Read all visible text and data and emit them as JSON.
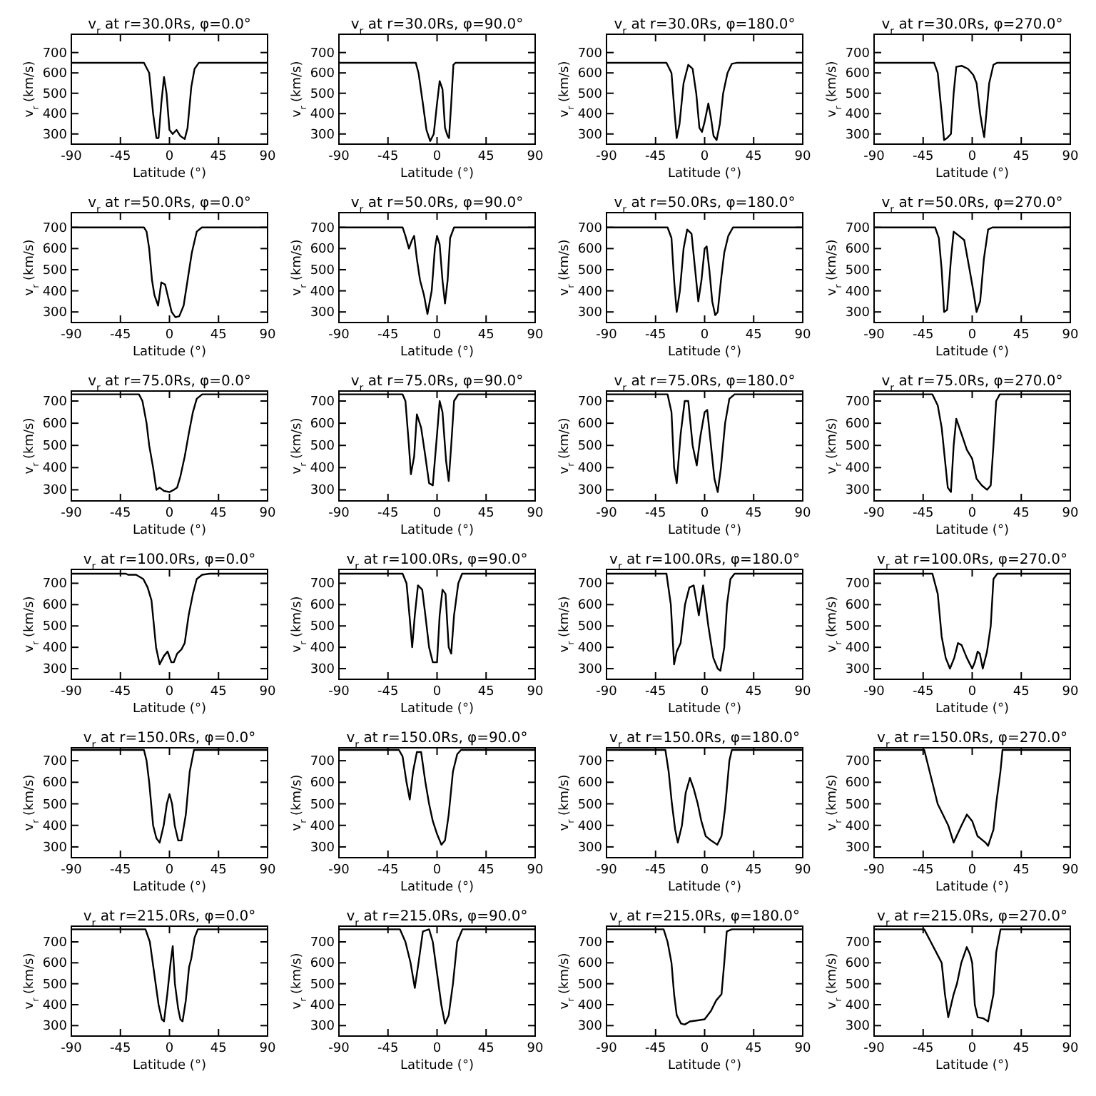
{
  "chart_data": [
    {
      "type": "line",
      "title": "v$_{r}$ at r=30.0Rs, φ=0.0°",
      "xlabel": "Latitude (°)",
      "ylabel": "v$_{r}$ (km/s)",
      "xlim": [
        -90,
        90
      ],
      "xticks": [
        -90,
        -45,
        0,
        45,
        90
      ],
      "ylim": [
        250,
        790
      ],
      "yticks": [
        300,
        400,
        500,
        600,
        700
      ],
      "series": [
        {
          "color": "#000000",
          "x": [
            -90,
            -23.4,
            -18.6,
            -15,
            -12,
            -10,
            -7.5,
            -5,
            -2.7,
            0,
            3,
            6.5,
            10,
            14,
            16.6,
            20,
            23,
            27,
            90
          ],
          "values": [
            650,
            650,
            600,
            400,
            280,
            280,
            450,
            580,
            500,
            320,
            300,
            320,
            290,
            275,
            330,
            530,
            620,
            650,
            650
          ]
        }
      ]
    },
    {
      "type": "line",
      "title": "v$_{r}$ at r=30.0Rs, φ=90.0°",
      "xlabel": "Latitude (°)",
      "ylabel": "v$_{r}$ (km/s)",
      "xlim": [
        -90,
        90
      ],
      "xticks": [
        -90,
        -45,
        0,
        45,
        90
      ],
      "ylim": [
        250,
        790
      ],
      "yticks": [
        300,
        400,
        500,
        600,
        700
      ],
      "series": [
        {
          "color": "#000000",
          "x": [
            -90,
            -19.5,
            -17,
            -13,
            -9.7,
            -6.3,
            -3,
            0,
            2.4,
            5,
            7.3,
            9.7,
            11,
            13,
            15,
            17,
            90
          ],
          "values": [
            650,
            650,
            600,
            450,
            320,
            265,
            300,
            450,
            560,
            520,
            330,
            290,
            280,
            450,
            640,
            650,
            650
          ]
        }
      ]
    },
    {
      "type": "line",
      "title": "v$_{r}$ at r=30.0Rs, φ=180.0°",
      "xlabel": "Latitude (°)",
      "ylabel": "v$_{r}$ (km/s)",
      "xlim": [
        -90,
        90
      ],
      "xticks": [
        -90,
        -45,
        0,
        45,
        90
      ],
      "ylim": [
        250,
        790
      ],
      "yticks": [
        300,
        400,
        500,
        600,
        700
      ],
      "series": [
        {
          "color": "#000000",
          "x": [
            -90,
            -35,
            -30.4,
            -27.5,
            -25.6,
            -23,
            -19.3,
            -15,
            -11,
            -7.7,
            -4.8,
            -2.4,
            0,
            3.4,
            5.8,
            8.2,
            11,
            14,
            17,
            21,
            25,
            30,
            90
          ],
          "values": [
            650,
            650,
            600,
            400,
            280,
            350,
            550,
            640,
            620,
            500,
            330,
            310,
            360,
            450,
            380,
            290,
            270,
            350,
            500,
            600,
            645,
            650,
            650
          ]
        }
      ]
    },
    {
      "type": "line",
      "title": "v$_{r}$ at r=30.0Rs, φ=270.0°",
      "xlabel": "Latitude (°)",
      "ylabel": "v$_{r}$ (km/s)",
      "xlim": [
        -90,
        90
      ],
      "xticks": [
        -90,
        -45,
        0,
        45,
        90
      ],
      "ylim": [
        250,
        790
      ],
      "yticks": [
        300,
        400,
        500,
        600,
        700
      ],
      "series": [
        {
          "color": "#000000",
          "x": [
            -90,
            -35,
            -31.6,
            -28,
            -25.8,
            -23,
            -19.5,
            -17,
            -14.6,
            -9.7,
            -3.9,
            1,
            4,
            7.3,
            9.7,
            11,
            13,
            15.6,
            19.5,
            23,
            90
          ],
          "values": [
            650,
            650,
            600,
            400,
            270,
            280,
            300,
            500,
            630,
            635,
            620,
            590,
            550,
            400,
            320,
            285,
            400,
            550,
            640,
            650,
            650
          ]
        }
      ]
    },
    {
      "type": "line",
      "title": "v$_{r}$ at r=50.0Rs, φ=0.0°",
      "xlabel": "Latitude (°)",
      "ylabel": "v$_{r}$ (km/s)",
      "xlim": [
        -90,
        90
      ],
      "xticks": [
        -90,
        -45,
        0,
        45,
        90
      ],
      "ylim": [
        250,
        770
      ],
      "yticks": [
        300,
        400,
        500,
        600,
        700
      ],
      "series": [
        {
          "color": "#000000",
          "x": [
            -90,
            -23.4,
            -21,
            -18.6,
            -16,
            -13.8,
            -10.4,
            -7.5,
            -4,
            -1.7,
            2,
            5.5,
            9,
            13,
            16.6,
            20.5,
            25,
            29.7,
            90
          ],
          "values": [
            700,
            700,
            680,
            600,
            450,
            380,
            330,
            440,
            430,
            380,
            300,
            275,
            280,
            330,
            450,
            580,
            680,
            700,
            700
          ]
        }
      ]
    },
    {
      "type": "line",
      "title": "v$_{r}$ at r=50.0Rs, φ=90.0°",
      "xlabel": "Latitude (°)",
      "ylabel": "v$_{r}$ (km/s)",
      "xlim": [
        -90,
        90
      ],
      "xticks": [
        -90,
        -45,
        0,
        45,
        90
      ],
      "ylim": [
        250,
        770
      ],
      "yticks": [
        300,
        400,
        500,
        600,
        700
      ],
      "series": [
        {
          "color": "#000000",
          "x": [
            -90,
            -31.6,
            -29,
            -25.8,
            -23,
            -21,
            -18.5,
            -15.6,
            -12,
            -8.8,
            -4.9,
            -2,
            0,
            2.4,
            5,
            7.3,
            9.7,
            12,
            15.6,
            90
          ],
          "values": [
            700,
            700,
            660,
            600,
            640,
            660,
            550,
            450,
            380,
            290,
            400,
            600,
            660,
            620,
            450,
            340,
            450,
            650,
            700,
            700
          ]
        }
      ]
    },
    {
      "type": "line",
      "title": "v$_{r}$ at r=50.0Rs, φ=180.0°",
      "xlabel": "Latitude (°)",
      "ylabel": "v$_{r}$ (km/s)",
      "xlim": [
        -90,
        90
      ],
      "xticks": [
        -90,
        -45,
        0,
        45,
        90
      ],
      "ylim": [
        250,
        770
      ],
      "yticks": [
        300,
        400,
        500,
        600,
        700
      ],
      "series": [
        {
          "color": "#000000",
          "x": [
            -90,
            -34,
            -30.4,
            -28,
            -25.6,
            -22.7,
            -19.3,
            -16,
            -12,
            -8.7,
            -5.8,
            -2.9,
            0,
            1.9,
            4.3,
            7,
            9.7,
            12,
            15,
            18,
            21.7,
            26,
            90
          ],
          "values": [
            700,
            700,
            650,
            450,
            300,
            400,
            600,
            690,
            670,
            500,
            350,
            450,
            600,
            610,
            500,
            350,
            285,
            300,
            450,
            580,
            660,
            700,
            700
          ]
        }
      ]
    },
    {
      "type": "line",
      "title": "v$_{r}$ at r=50.0Rs, φ=270.0°",
      "xlabel": "Latitude (°)",
      "ylabel": "v$_{r}$ (km/s)",
      "xlim": [
        -90,
        90
      ],
      "xticks": [
        -90,
        -45,
        0,
        45,
        90
      ],
      "ylim": [
        250,
        770
      ],
      "yticks": [
        300,
        400,
        500,
        600,
        700
      ],
      "series": [
        {
          "color": "#000000",
          "x": [
            -90,
            -34,
            -30.6,
            -28,
            -25.8,
            -23,
            -19.5,
            -17,
            -12,
            -7.3,
            -2.4,
            1,
            4,
            7.3,
            10.7,
            14.6,
            18.5,
            90
          ],
          "values": [
            700,
            700,
            650,
            500,
            300,
            310,
            550,
            680,
            660,
            640,
            500,
            400,
            300,
            350,
            550,
            690,
            700,
            700
          ]
        }
      ]
    },
    {
      "type": "line",
      "title": "v$_{r}$ at r=75.0Rs, φ=0.0°",
      "xlabel": "Latitude (°)",
      "ylabel": "v$_{r}$ (km/s)",
      "xlim": [
        -90,
        90
      ],
      "xticks": [
        -90,
        -45,
        0,
        45,
        90
      ],
      "ylim": [
        250,
        745
      ],
      "yticks": [
        300,
        400,
        500,
        600,
        700
      ],
      "series": [
        {
          "color": "#000000",
          "x": [
            -90,
            -28,
            -24.8,
            -21,
            -18.6,
            -15,
            -12,
            -9,
            -5,
            0,
            4,
            7,
            10,
            14,
            17.6,
            21.5,
            25,
            30,
            90
          ],
          "values": [
            730,
            730,
            700,
            600,
            500,
            400,
            300,
            310,
            295,
            290,
            300,
            310,
            360,
            450,
            550,
            650,
            710,
            730,
            730
          ]
        }
      ]
    },
    {
      "type": "line",
      "title": "v$_{r}$ at r=75.0Rs, φ=90.0°",
      "xlabel": "Latitude (°)",
      "ylabel": "v$_{r}$ (km/s)",
      "xlim": [
        -90,
        90
      ],
      "xticks": [
        -90,
        -45,
        0,
        45,
        90
      ],
      "ylim": [
        250,
        745
      ],
      "yticks": [
        300,
        400,
        500,
        600,
        700
      ],
      "series": [
        {
          "color": "#000000",
          "x": [
            -90,
            -31.6,
            -29,
            -25.8,
            -24,
            -21,
            -18.5,
            -14.6,
            -10.7,
            -7.3,
            -3.9,
            0,
            2.4,
            5,
            8.3,
            10.7,
            13,
            15.6,
            19.5,
            90
          ],
          "values": [
            730,
            730,
            700,
            500,
            370,
            450,
            640,
            580,
            450,
            330,
            320,
            550,
            700,
            650,
            430,
            340,
            500,
            700,
            730,
            730
          ]
        }
      ]
    },
    {
      "type": "line",
      "title": "v$_{r}$ at r=75.0Rs, φ=180.0°",
      "xlabel": "Latitude (°)",
      "ylabel": "v$_{r}$ (km/s)",
      "xlim": [
        -90,
        90
      ],
      "xticks": [
        -90,
        -45,
        0,
        45,
        90
      ],
      "ylim": [
        250,
        745
      ],
      "yticks": [
        300,
        400,
        500,
        600,
        700
      ],
      "series": [
        {
          "color": "#000000",
          "x": [
            -90,
            -34,
            -30.4,
            -28,
            -25.6,
            -22,
            -18.3,
            -15,
            -11,
            -7.2,
            -3.9,
            0,
            2.4,
            5.8,
            9,
            12,
            15,
            18.8,
            22.7,
            27.5,
            90
          ],
          "values": [
            730,
            730,
            650,
            400,
            330,
            550,
            700,
            700,
            500,
            410,
            540,
            650,
            660,
            500,
            350,
            290,
            400,
            600,
            710,
            730,
            730
          ]
        }
      ]
    },
    {
      "type": "line",
      "title": "v$_{r}$ at r=75.0Rs, φ=270.0°",
      "xlabel": "Latitude (°)",
      "ylabel": "v$_{r}$ (km/s)",
      "xlim": [
        -90,
        90
      ],
      "xticks": [
        -90,
        -45,
        0,
        45,
        90
      ],
      "ylim": [
        250,
        745
      ],
      "yticks": [
        300,
        400,
        500,
        600,
        700
      ],
      "series": [
        {
          "color": "#000000",
          "x": [
            -90,
            -36.5,
            -31.6,
            -28,
            -25.3,
            -22.4,
            -19.5,
            -17,
            -14.6,
            -9.7,
            -4.9,
            0,
            4,
            8.8,
            13.6,
            17,
            19.5,
            22,
            25.3,
            90
          ],
          "values": [
            730,
            730,
            680,
            580,
            450,
            310,
            290,
            500,
            620,
            550,
            480,
            440,
            350,
            320,
            300,
            320,
            500,
            700,
            730,
            730
          ]
        }
      ]
    },
    {
      "type": "line",
      "title": "v$_{r}$ at r=100.0Rs, φ=0.0°",
      "xlabel": "Latitude (°)",
      "ylabel": "v$_{r}$ (km/s)",
      "xlim": [
        -90,
        90
      ],
      "xticks": [
        -90,
        -45,
        0,
        45,
        90
      ],
      "ylim": [
        250,
        765
      ],
      "yticks": [
        300,
        400,
        500,
        600,
        700
      ],
      "series": [
        {
          "color": "#000000",
          "x": [
            -90,
            -40,
            -38,
            -30.6,
            -24,
            -20,
            -16.5,
            -12.3,
            -9,
            -5,
            -1.7,
            1.7,
            4,
            7,
            11,
            14,
            17.6,
            21.5,
            25,
            30,
            37,
            90
          ],
          "values": [
            745,
            745,
            740,
            740,
            720,
            680,
            620,
            400,
            320,
            360,
            380,
            330,
            330,
            370,
            390,
            420,
            550,
            650,
            720,
            740,
            745,
            745
          ]
        }
      ]
    },
    {
      "type": "line",
      "title": "v$_{r}$ at r=100.0Rs, φ=90.0°",
      "xlabel": "Latitude (°)",
      "ylabel": "v$_{r}$ (km/s)",
      "xlim": [
        -90,
        90
      ],
      "xticks": [
        -90,
        -45,
        0,
        45,
        90
      ],
      "ylim": [
        250,
        765
      ],
      "yticks": [
        300,
        400,
        500,
        600,
        700
      ],
      "series": [
        {
          "color": "#000000",
          "x": [
            -90,
            -31.6,
            -28,
            -25.3,
            -22.8,
            -20.4,
            -17.5,
            -13.6,
            -10.7,
            -7.3,
            -3.9,
            0,
            2.4,
            5,
            7.8,
            10.7,
            13,
            15.6,
            19.5,
            23,
            90
          ],
          "values": [
            745,
            745,
            700,
            550,
            400,
            550,
            690,
            670,
            550,
            400,
            330,
            330,
            550,
            670,
            650,
            400,
            370,
            550,
            700,
            745,
            745
          ]
        }
      ]
    },
    {
      "type": "line",
      "title": "v$_{r}$ at r=100.0Rs, φ=180.0°",
      "xlabel": "Latitude (°)",
      "ylabel": "v$_{r}$ (km/s)",
      "xlim": [
        -90,
        90
      ],
      "xticks": [
        -90,
        -45,
        0,
        45,
        90
      ],
      "ylim": [
        250,
        765
      ],
      "yticks": [
        300,
        400,
        500,
        600,
        700
      ],
      "series": [
        {
          "color": "#000000",
          "x": [
            -90,
            -35,
            -31,
            -28,
            -25.6,
            -22,
            -18,
            -14,
            -10,
            -5.3,
            -1.4,
            3.4,
            8,
            12,
            14.5,
            18,
            20.5,
            23.7,
            27.5,
            90
          ],
          "values": [
            745,
            745,
            600,
            320,
            380,
            420,
            600,
            680,
            690,
            550,
            690,
            500,
            350,
            300,
            290,
            400,
            600,
            720,
            745,
            745
          ]
        }
      ]
    },
    {
      "type": "line",
      "title": "v$_{r}$ at r=100.0Rs, φ=270.0°",
      "xlabel": "Latitude (°)",
      "ylabel": "v$_{r}$ (km/s)",
      "xlim": [
        -90,
        90
      ],
      "xticks": [
        -90,
        -45,
        0,
        45,
        90
      ],
      "ylim": [
        250,
        765
      ],
      "yticks": [
        300,
        400,
        500,
        600,
        700
      ],
      "series": [
        {
          "color": "#000000",
          "x": [
            -90,
            -36.5,
            -31.6,
            -28,
            -24.3,
            -20.4,
            -16.5,
            -13,
            -9.7,
            -4.9,
            0,
            2.4,
            5,
            7,
            9.7,
            13.6,
            17,
            19.5,
            23,
            90
          ],
          "values": [
            745,
            745,
            650,
            450,
            350,
            300,
            350,
            420,
            410,
            350,
            300,
            330,
            380,
            370,
            300,
            380,
            500,
            720,
            745,
            745
          ]
        }
      ]
    },
    {
      "type": "line",
      "title": "v$_{r}$ at r=150.0Rs, φ=0.0°",
      "xlabel": "Latitude (°)",
      "ylabel": "v$_{r}$ (km/s)",
      "xlim": [
        -90,
        90
      ],
      "xticks": [
        -90,
        -45,
        0,
        45,
        90
      ],
      "ylim": [
        250,
        760
      ],
      "yticks": [
        300,
        400,
        500,
        600,
        700
      ],
      "series": [
        {
          "color": "#000000",
          "x": [
            -90,
            -23.4,
            -21,
            -18.6,
            -15,
            -12,
            -9,
            -5.3,
            -2.4,
            0,
            2.4,
            4.8,
            8,
            11,
            15,
            18.6,
            22.5,
            90
          ],
          "values": [
            750,
            750,
            700,
            600,
            400,
            340,
            320,
            400,
            500,
            545,
            500,
            400,
            330,
            330,
            450,
            650,
            750,
            750
          ]
        }
      ]
    },
    {
      "type": "line",
      "title": "v$_{r}$ at r=150.0Rs, φ=90.0°",
      "xlabel": "Latitude (°)",
      "ylabel": "v$_{r}$ (km/s)",
      "xlim": [
        -90,
        90
      ],
      "xticks": [
        -90,
        -45,
        0,
        45,
        90
      ],
      "ylim": [
        250,
        760
      ],
      "yticks": [
        300,
        400,
        500,
        600,
        700
      ],
      "series": [
        {
          "color": "#000000",
          "x": [
            -90,
            -35,
            -31.6,
            -28,
            -25,
            -22,
            -18.5,
            -14.6,
            -10.7,
            -7.3,
            -3.9,
            0,
            4,
            7.3,
            10.7,
            14.6,
            18.5,
            22,
            90
          ],
          "values": [
            750,
            750,
            720,
            600,
            520,
            650,
            740,
            740,
            600,
            500,
            420,
            360,
            310,
            330,
            450,
            650,
            730,
            750,
            750
          ]
        }
      ]
    },
    {
      "type": "line",
      "title": "v$_{r}$ at r=150.0Rs, φ=180.0°",
      "xlabel": "Latitude (°)",
      "ylabel": "v$_{r}$ (km/s)",
      "xlim": [
        -90,
        90
      ],
      "xticks": [
        -90,
        -45,
        0,
        45,
        90
      ],
      "ylim": [
        250,
        760
      ],
      "yticks": [
        300,
        400,
        500,
        600,
        700
      ],
      "series": [
        {
          "color": "#000000",
          "x": [
            -90,
            -36,
            -33,
            -30,
            -27,
            -24.6,
            -20.8,
            -17.4,
            -13.5,
            -10,
            -6.3,
            -3,
            1,
            5.8,
            11.6,
            15.5,
            18.8,
            22.7,
            25,
            90
          ],
          "values": [
            750,
            750,
            650,
            500,
            380,
            320,
            400,
            550,
            620,
            570,
            500,
            420,
            350,
            330,
            310,
            350,
            480,
            700,
            750,
            750
          ]
        }
      ]
    },
    {
      "type": "line",
      "title": "v$_{r}$ at r=150.0Rs, φ=270.0°",
      "xlabel": "Latitude (°)",
      "ylabel": "v$_{r}$ (km/s)",
      "xlim": [
        -90,
        90
      ],
      "xticks": [
        -90,
        -45,
        0,
        45,
        90
      ],
      "ylim": [
        250,
        760
      ],
      "yticks": [
        300,
        400,
        500,
        600,
        700
      ],
      "series": [
        {
          "color": "#000000",
          "x": [
            -90,
            -44,
            -36.6,
            -31.7,
            -22,
            -17,
            -9.8,
            -4.9,
            0,
            4.9,
            12.2,
            14.6,
            19.5,
            22,
            25.9,
            27.8,
            90
          ],
          "values": [
            750,
            750,
            600,
            500,
            400,
            320,
            400,
            450,
            420,
            350,
            320,
            305,
            380,
            500,
            650,
            750,
            750
          ]
        }
      ]
    },
    {
      "type": "line",
      "title": "v$_{r}$ at r=215.0Rs, φ=0.0°",
      "xlabel": "Latitude (°)",
      "ylabel": "v$_{r}$ (km/s)",
      "xlim": [
        -90,
        90
      ],
      "xticks": [
        -90,
        -45,
        0,
        45,
        90
      ],
      "ylim": [
        250,
        775
      ],
      "yticks": [
        300,
        400,
        500,
        600,
        700
      ],
      "series": [
        {
          "color": "#000000",
          "x": [
            -90,
            -22,
            -18,
            -14,
            -10,
            -7,
            -5,
            -2,
            1,
            3,
            5,
            8,
            10,
            12,
            15,
            18,
            20,
            23,
            26,
            90
          ],
          "values": [
            760,
            760,
            700,
            550,
            400,
            330,
            320,
            450,
            600,
            680,
            500,
            380,
            330,
            320,
            420,
            580,
            620,
            720,
            760,
            760
          ]
        }
      ]
    },
    {
      "type": "line",
      "title": "v$_{r}$ at r=215.0Rs, φ=90.0°",
      "xlabel": "Latitude (°)",
      "ylabel": "v$_{r}$ (km/s)",
      "xlim": [
        -90,
        90
      ],
      "xticks": [
        -90,
        -45,
        0,
        45,
        90
      ],
      "ylim": [
        250,
        775
      ],
      "yticks": [
        300,
        400,
        500,
        600,
        700
      ],
      "series": [
        {
          "color": "#000000",
          "x": [
            -90,
            -34,
            -29,
            -24.3,
            -20.4,
            -17,
            -13,
            -7.3,
            -3.9,
            0,
            3.9,
            7.3,
            10.7,
            14.6,
            18.5,
            23.3,
            90
          ],
          "values": [
            760,
            760,
            700,
            600,
            480,
            600,
            750,
            760,
            700,
            550,
            400,
            310,
            350,
            500,
            700,
            760,
            760
          ]
        }
      ]
    },
    {
      "type": "line",
      "title": "v$_{r}$ at r=215.0Rs, φ=180.0°",
      "xlabel": "Latitude (°)",
      "ylabel": "v$_{r}$ (km/s)",
      "xlim": [
        -90,
        90
      ],
      "xticks": [
        -90,
        -45,
        0,
        45,
        90
      ],
      "ylim": [
        250,
        775
      ],
      "yticks": [
        300,
        400,
        500,
        600,
        700
      ],
      "series": [
        {
          "color": "#000000",
          "x": [
            -90,
            -37.6,
            -34,
            -30.4,
            -28,
            -25.6,
            -21.7,
            -18.3,
            -13.5,
            -6.3,
            0,
            5.8,
            10.6,
            15.5,
            18,
            20.3,
            25,
            90
          ],
          "values": [
            760,
            760,
            700,
            600,
            450,
            350,
            310,
            305,
            320,
            325,
            330,
            370,
            420,
            450,
            600,
            750,
            760,
            760
          ]
        }
      ]
    },
    {
      "type": "line",
      "title": "v$_{r}$ at r=215.0Rs, φ=270.0°",
      "xlabel": "Latitude (°)",
      "ylabel": "v$_{r}$ (km/s)",
      "xlim": [
        -90,
        90
      ],
      "xticks": [
        -90,
        -45,
        0,
        45,
        90
      ],
      "ylim": [
        250,
        775
      ],
      "yticks": [
        300,
        400,
        500,
        600,
        700
      ],
      "series": [
        {
          "color": "#000000",
          "x": [
            -90,
            -44,
            -38,
            -33,
            -28,
            -25,
            -22,
            -17,
            -14,
            -10,
            -5,
            -2,
            0,
            2.4,
            5,
            10,
            14.6,
            19.5,
            22,
            26,
            90
          ],
          "values": [
            760,
            760,
            700,
            650,
            600,
            450,
            340,
            450,
            500,
            600,
            675,
            640,
            600,
            400,
            340,
            335,
            320,
            450,
            650,
            760,
            760
          ]
        }
      ]
    }
  ]
}
